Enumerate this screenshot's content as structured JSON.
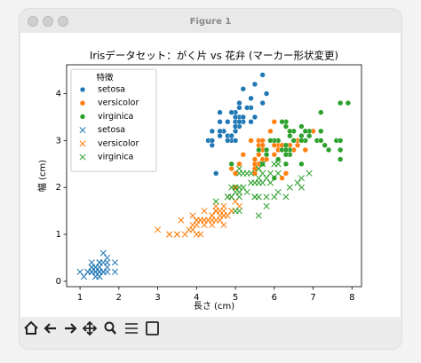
{
  "window": {
    "title": "Figure 1"
  },
  "chart_data": {
    "type": "scatter",
    "title": "Irisデータセット：がく片 vs 花弁 (マーカー形状変更)",
    "x_label": "長さ (cm)",
    "y_label": "幅 (cm)",
    "legend_title": "特徴",
    "legend_loc": "upper left",
    "grid": false,
    "xlim": [
      0.655,
      8.245
    ],
    "ylim": [
      -0.115,
      4.615
    ],
    "xticks": [
      1,
      2,
      3,
      4,
      5,
      6,
      7,
      8
    ],
    "yticks": [
      0,
      1,
      2,
      3,
      4
    ],
    "series": [
      {
        "name": "setosa",
        "color": "#1f77b4",
        "marker": "o",
        "x": [
          5.1,
          4.9,
          4.7,
          4.6,
          5.0,
          5.4,
          4.6,
          5.0,
          4.4,
          4.9,
          5.4,
          4.8,
          4.8,
          4.3,
          5.8,
          5.7,
          5.4,
          5.1,
          5.7,
          5.1,
          5.4,
          5.1,
          4.6,
          5.1,
          4.8,
          5.0,
          5.0,
          5.2,
          5.2,
          4.7,
          4.8,
          5.4,
          5.2,
          5.5,
          4.9,
          5.0,
          5.5,
          4.9,
          4.4,
          5.1,
          5.0,
          4.5,
          4.4,
          5.0,
          5.1,
          4.8,
          5.1,
          4.6,
          5.3,
          5.0
        ],
        "y": [
          3.5,
          3.0,
          3.2,
          3.1,
          3.6,
          3.9,
          3.4,
          3.4,
          2.9,
          3.1,
          3.7,
          3.4,
          3.0,
          3.0,
          4.0,
          4.4,
          3.9,
          3.5,
          3.8,
          3.8,
          3.4,
          3.7,
          3.6,
          3.3,
          3.4,
          3.0,
          3.4,
          3.5,
          3.4,
          3.2,
          3.1,
          3.4,
          4.1,
          4.2,
          3.1,
          3.2,
          3.5,
          3.6,
          3.0,
          3.4,
          3.5,
          2.3,
          3.2,
          3.5,
          3.8,
          3.0,
          3.8,
          3.2,
          3.7,
          3.3
        ]
      },
      {
        "name": "versicolor",
        "color": "#ff7f0e",
        "marker": "o",
        "x": [
          7.0,
          6.4,
          6.9,
          5.5,
          6.5,
          5.7,
          6.3,
          4.9,
          6.6,
          5.2,
          5.0,
          5.9,
          6.0,
          6.1,
          5.6,
          6.7,
          5.6,
          5.8,
          6.2,
          5.6,
          5.9,
          6.1,
          6.3,
          6.1,
          6.4,
          6.6,
          6.8,
          6.7,
          6.0,
          5.7,
          5.5,
          5.5,
          5.8,
          6.0,
          5.4,
          6.0,
          6.7,
          6.3,
          5.6,
          5.5,
          5.5,
          6.1,
          5.8,
          5.0,
          5.6,
          5.7,
          5.7,
          6.2,
          5.1,
          5.7
        ],
        "y": [
          3.2,
          3.2,
          3.1,
          2.3,
          2.8,
          2.8,
          3.3,
          2.4,
          2.9,
          2.7,
          2.0,
          3.0,
          2.2,
          2.9,
          2.9,
          3.1,
          3.0,
          2.7,
          2.2,
          2.5,
          3.2,
          2.8,
          2.5,
          2.8,
          2.9,
          3.0,
          2.8,
          3.0,
          2.9,
          2.6,
          2.4,
          2.4,
          2.7,
          2.7,
          3.0,
          3.4,
          3.1,
          2.3,
          3.0,
          2.5,
          2.6,
          3.0,
          2.6,
          2.3,
          2.7,
          3.0,
          2.9,
          2.9,
          2.5,
          2.8
        ]
      },
      {
        "name": "virginica",
        "color": "#2ca02c",
        "marker": "o",
        "x": [
          6.3,
          5.8,
          7.1,
          6.3,
          6.5,
          7.6,
          4.9,
          7.3,
          6.7,
          7.2,
          6.5,
          6.4,
          6.8,
          5.7,
          5.8,
          6.4,
          6.5,
          7.7,
          7.7,
          6.0,
          6.9,
          5.6,
          7.7,
          6.3,
          6.7,
          7.2,
          6.2,
          6.1,
          6.4,
          7.2,
          7.4,
          7.9,
          6.4,
          6.3,
          6.1,
          7.7,
          6.3,
          6.4,
          6.0,
          6.9,
          6.7,
          6.9,
          5.8,
          6.8,
          6.7,
          6.7,
          6.3,
          6.5,
          6.2,
          5.9
        ],
        "y": [
          3.3,
          2.7,
          3.0,
          2.9,
          3.0,
          3.0,
          2.5,
          2.9,
          2.5,
          3.6,
          3.2,
          2.7,
          3.0,
          2.5,
          2.8,
          3.2,
          3.0,
          3.8,
          2.6,
          2.2,
          3.2,
          2.8,
          2.8,
          2.7,
          3.3,
          3.2,
          2.8,
          3.0,
          2.8,
          3.0,
          2.8,
          3.8,
          2.8,
          2.8,
          2.6,
          3.0,
          3.4,
          3.1,
          3.0,
          3.1,
          3.1,
          3.1,
          2.7,
          3.2,
          3.3,
          3.0,
          2.5,
          3.0,
          3.4,
          3.0
        ]
      },
      {
        "name": "setosa",
        "color": "#1f77b4",
        "marker": "x",
        "x": [
          1.4,
          1.4,
          1.3,
          1.5,
          1.4,
          1.7,
          1.4,
          1.5,
          1.4,
          1.5,
          1.5,
          1.6,
          1.4,
          1.1,
          1.2,
          1.5,
          1.3,
          1.4,
          1.7,
          1.5,
          1.7,
          1.5,
          1.0,
          1.7,
          1.9,
          1.6,
          1.6,
          1.5,
          1.4,
          1.6,
          1.6,
          1.5,
          1.5,
          1.4,
          1.5,
          1.2,
          1.3,
          1.4,
          1.3,
          1.5,
          1.3,
          1.3,
          1.3,
          1.6,
          1.9,
          1.4,
          1.6,
          1.4,
          1.5,
          1.4
        ],
        "y": [
          0.2,
          0.2,
          0.2,
          0.2,
          0.2,
          0.4,
          0.3,
          0.2,
          0.2,
          0.1,
          0.2,
          0.2,
          0.1,
          0.1,
          0.2,
          0.4,
          0.4,
          0.3,
          0.3,
          0.3,
          0.2,
          0.4,
          0.2,
          0.5,
          0.2,
          0.2,
          0.4,
          0.2,
          0.2,
          0.2,
          0.2,
          0.4,
          0.1,
          0.2,
          0.2,
          0.2,
          0.2,
          0.1,
          0.2,
          0.2,
          0.3,
          0.3,
          0.2,
          0.6,
          0.4,
          0.3,
          0.2,
          0.2,
          0.2,
          0.2
        ]
      },
      {
        "name": "versicolor",
        "color": "#ff7f0e",
        "marker": "x",
        "x": [
          4.7,
          4.5,
          4.9,
          4.0,
          4.6,
          4.5,
          4.7,
          3.3,
          4.6,
          3.9,
          3.5,
          4.2,
          4.0,
          4.7,
          3.6,
          4.4,
          4.5,
          4.1,
          4.5,
          3.9,
          4.8,
          4.0,
          4.9,
          4.7,
          4.3,
          4.4,
          4.8,
          5.0,
          4.5,
          3.5,
          3.8,
          3.7,
          3.9,
          5.1,
          4.5,
          4.5,
          4.7,
          4.4,
          4.1,
          4.0,
          4.4,
          4.6,
          4.0,
          3.3,
          4.2,
          4.2,
          4.2,
          4.3,
          3.0,
          4.1
        ],
        "y": [
          1.4,
          1.5,
          1.5,
          1.3,
          1.5,
          1.3,
          1.6,
          1.0,
          1.3,
          1.4,
          1.0,
          1.5,
          1.0,
          1.4,
          1.3,
          1.4,
          1.5,
          1.0,
          1.5,
          1.1,
          1.8,
          1.3,
          1.5,
          1.2,
          1.3,
          1.4,
          1.4,
          1.7,
          1.5,
          1.0,
          1.1,
          1.0,
          1.2,
          1.6,
          1.5,
          1.6,
          1.5,
          1.3,
          1.3,
          1.3,
          1.2,
          1.4,
          1.2,
          1.0,
          1.3,
          1.2,
          1.3,
          1.3,
          1.1,
          1.3
        ]
      },
      {
        "name": "virginica",
        "color": "#2ca02c",
        "marker": "x",
        "x": [
          6.0,
          5.1,
          5.9,
          5.6,
          5.8,
          6.6,
          4.5,
          6.3,
          5.8,
          6.1,
          5.1,
          5.3,
          5.5,
          5.0,
          5.1,
          5.3,
          5.5,
          6.7,
          6.9,
          5.0,
          5.7,
          4.9,
          6.7,
          4.9,
          5.7,
          6.0,
          4.8,
          4.9,
          5.6,
          5.8,
          6.1,
          6.4,
          5.6,
          5.1,
          5.6,
          6.1,
          5.6,
          5.5,
          4.8,
          5.4,
          5.6,
          5.1,
          5.1,
          5.9,
          5.7,
          5.2,
          5.0,
          5.2,
          5.4,
          5.1
        ],
        "y": [
          2.5,
          1.9,
          2.1,
          1.8,
          2.2,
          2.1,
          1.7,
          1.8,
          1.8,
          2.5,
          2.0,
          1.9,
          2.1,
          2.0,
          2.4,
          2.3,
          1.8,
          2.2,
          2.3,
          1.5,
          2.3,
          2.0,
          2.0,
          1.8,
          2.1,
          1.8,
          1.8,
          1.8,
          2.1,
          1.6,
          1.9,
          2.0,
          2.2,
          1.5,
          1.4,
          2.3,
          2.4,
          1.8,
          1.8,
          2.1,
          2.4,
          2.3,
          1.9,
          2.3,
          2.5,
          2.3,
          1.9,
          2.0,
          2.3,
          1.8
        ]
      }
    ]
  }
}
